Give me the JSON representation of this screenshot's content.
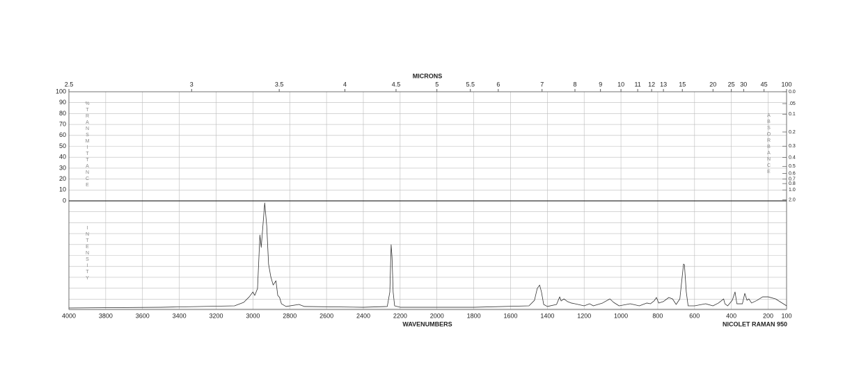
{
  "chart_data": {
    "type": "line",
    "title": "MICRONS",
    "x_label": "WAVENUMBERS",
    "footer": "NICOLET RAMAN 950",
    "left_axis_label": "%TRANSMITTANCE",
    "right_axis_label": "ABSORBANCE",
    "lower_axis_label": "INTENSITY",
    "xlim": [
      4000,
      100
    ],
    "xticks": [
      4000,
      3800,
      3600,
      3400,
      3200,
      3000,
      2800,
      2600,
      2400,
      2200,
      2000,
      1800,
      1600,
      1400,
      1200,
      1000,
      800,
      600,
      400,
      200,
      100
    ],
    "micron_ticks": [
      2.5,
      3,
      3.5,
      4,
      4.5,
      5,
      5.5,
      6,
      7,
      8,
      9,
      10,
      11,
      12,
      13,
      15,
      20,
      25,
      30,
      45,
      100
    ],
    "ylim": [
      0,
      100
    ],
    "yticks": [
      0,
      10,
      20,
      30,
      40,
      50,
      60,
      70,
      80,
      90,
      100
    ],
    "absorbance_ticks": [
      {
        "value": 0,
        "label": "0.0"
      },
      {
        "value": 0.05,
        "label": ".05"
      },
      0.1,
      0.2,
      0.3,
      0.4,
      0.5,
      0.6,
      0.7,
      0.8,
      {
        "value": 1,
        "label": "1.0"
      },
      {
        "value": 2,
        "label": "2.0"
      }
    ],
    "intensity_ylim": [
      0,
      100
    ],
    "grid": true,
    "color": "#333333",
    "x": [
      4000,
      3500,
      3100,
      3050,
      3020,
      3000,
      2990,
      2975,
      2962,
      2955,
      2936,
      2925,
      2915,
      2903,
      2890,
      2875,
      2865,
      2855,
      2845,
      2820,
      2750,
      2720,
      2400,
      2270,
      2256,
      2249,
      2244,
      2238,
      2230,
      2200,
      1800,
      1500,
      1470,
      1455,
      1442,
      1432,
      1420,
      1400,
      1350,
      1333,
      1325,
      1310,
      1290,
      1270,
      1250,
      1200,
      1170,
      1150,
      1100,
      1060,
      1040,
      1010,
      950,
      900,
      860,
      840,
      820,
      807,
      795,
      770,
      740,
      720,
      700,
      680,
      660,
      655,
      645,
      635,
      600,
      560,
      540,
      500,
      470,
      442,
      435,
      420,
      395,
      380,
      370,
      340,
      327,
      315,
      305,
      290,
      260,
      230,
      200,
      160,
      130,
      100
    ],
    "values": [
      1.3,
      1.9,
      3.2,
      6.4,
      11.5,
      16.0,
      12.8,
      19.2,
      68.6,
      57.1,
      98.1,
      76.9,
      41.7,
      30.1,
      22.4,
      26.3,
      12.8,
      10.9,
      5.1,
      2.6,
      4.5,
      2.6,
      1.9,
      2.6,
      16.0,
      59.6,
      48.1,
      16.0,
      3.2,
      1.9,
      1.9,
      3.2,
      8.3,
      19.2,
      22.4,
      16.0,
      4.5,
      2.6,
      4.5,
      11.5,
      7.7,
      9.6,
      7.1,
      5.8,
      5.1,
      3.2,
      5.1,
      3.2,
      5.8,
      9.6,
      6.4,
      3.2,
      5.1,
      3.2,
      5.8,
      5.1,
      7.7,
      10.9,
      5.8,
      7.1,
      10.9,
      9.6,
      4.5,
      9.6,
      41.7,
      41.0,
      16.0,
      3.2,
      3.2,
      4.5,
      5.1,
      3.2,
      5.8,
      9.6,
      5.1,
      3.2,
      8.3,
      16.0,
      5.1,
      5.1,
      14.7,
      8.3,
      9.6,
      5.8,
      8.3,
      11.5,
      11.5,
      9.6,
      6.4,
      3.2
    ]
  }
}
